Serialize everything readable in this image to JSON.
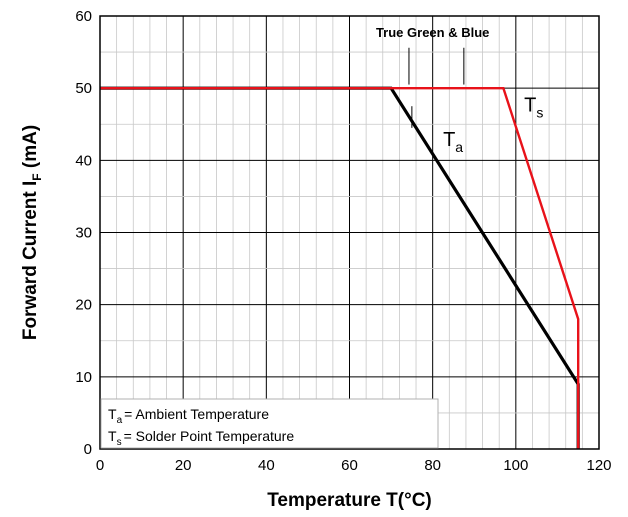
{
  "chart_data": {
    "type": "line",
    "xlabel": "Temperature T(°C)",
    "ylabel": {
      "main": "Forward Current I",
      "sub": "F",
      "unit": " (mA)"
    },
    "xlim": [
      0,
      120
    ],
    "ylim": [
      0,
      60
    ],
    "x_ticks": [
      0,
      20,
      40,
      60,
      80,
      100,
      120
    ],
    "y_ticks": [
      0,
      10,
      20,
      30,
      40,
      50,
      60
    ],
    "grid": true,
    "annotation": "True Green & Blue",
    "series": [
      {
        "name": "Ta",
        "label_main": "T",
        "label_sub": "a",
        "color": "#000000",
        "x": [
          0,
          70,
          115,
          115
        ],
        "y": [
          50,
          50,
          9,
          0
        ]
      },
      {
        "name": "Ts",
        "label_main": "T",
        "label_sub": "s",
        "color": "#e8121a",
        "x": [
          0,
          97,
          115,
          115
        ],
        "y": [
          50,
          50,
          18,
          0
        ]
      }
    ],
    "legend": {
      "position": "bottom-left",
      "entries": [
        {
          "main": "T",
          "sub": "a",
          "text": "= Ambient Temperature"
        },
        {
          "main": "T",
          "sub": "s",
          "text": "= Solder Point Temperature"
        }
      ]
    }
  }
}
